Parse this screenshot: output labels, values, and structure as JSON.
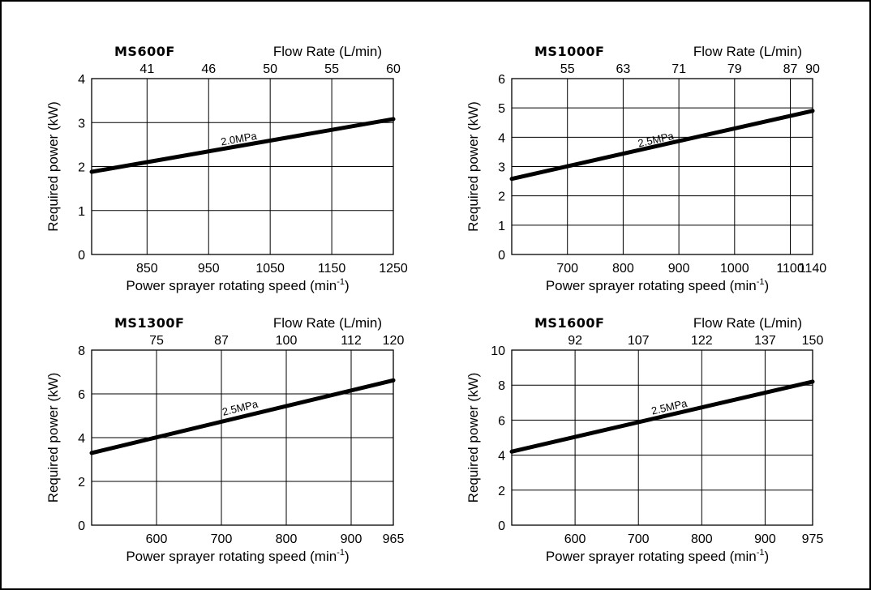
{
  "chart_data": [
    {
      "type": "line",
      "model": "MS600F",
      "top_axis_label": "Flow Rate (L/min)",
      "xlabel": "Power sprayer rotating speed (min",
      "xlabel_sup": "-1",
      "xlabel_close": ")",
      "ylabel": "Required power (kW)",
      "xlim": [
        760,
        1250
      ],
      "ylim": [
        0,
        4
      ],
      "x_ticks": [
        850,
        950,
        1050,
        1150,
        1250
      ],
      "x_tick_labels": [
        "850",
        "950",
        "1050",
        "1150",
        "1250"
      ],
      "y_ticks": [
        0,
        1,
        2,
        3,
        4
      ],
      "y_tick_labels": [
        "0",
        "1",
        "2",
        "3",
        "4"
      ],
      "top_ticks": [
        850,
        950,
        1050,
        1150,
        1250
      ],
      "top_tick_labels": [
        "41",
        "46",
        "50",
        "55",
        "60"
      ],
      "series": [
        {
          "name": "2.0MPa",
          "x": [
            760,
            1250
          ],
          "y": [
            1.88,
            3.08
          ]
        }
      ],
      "annotation": {
        "text": "2.0MPa",
        "x": 1000,
        "y": 2.55
      },
      "grid": true
    },
    {
      "type": "line",
      "model": "MS1000F",
      "top_axis_label": "Flow Rate (L/min)",
      "xlabel": "Power sprayer rotating speed (min",
      "xlabel_sup": "-1",
      "xlabel_close": ")",
      "ylabel": "Required power (kW)",
      "xlim": [
        600,
        1140
      ],
      "ylim": [
        0,
        6
      ],
      "x_ticks": [
        700,
        800,
        900,
        1000,
        1100,
        1140
      ],
      "x_tick_labels": [
        "700",
        "800",
        "900",
        "1000",
        "1100",
        "1140"
      ],
      "y_ticks": [
        0,
        1,
        2,
        3,
        4,
        5,
        6
      ],
      "y_tick_labels": [
        "0",
        "1",
        "2",
        "3",
        "4",
        "5",
        "6"
      ],
      "top_ticks": [
        700,
        800,
        900,
        1000,
        1100,
        1140
      ],
      "top_tick_labels": [
        "55",
        "63",
        "71",
        "79",
        "87",
        "90"
      ],
      "series": [
        {
          "name": "2.5MPa",
          "x": [
            600,
            1140
          ],
          "y": [
            2.58,
            4.9
          ]
        }
      ],
      "annotation": {
        "text": "2.5MPa",
        "x": 860,
        "y": 3.8
      },
      "grid": true
    },
    {
      "type": "line",
      "model": "MS1300F",
      "top_axis_label": "Flow Rate (L/min)",
      "xlabel": "Power sprayer rotating speed (min",
      "xlabel_sup": "-1",
      "xlabel_close": ")",
      "ylabel": "Required power (kW)",
      "xlim": [
        500,
        965
      ],
      "ylim": [
        0,
        8
      ],
      "x_ticks": [
        600,
        700,
        800,
        900,
        965
      ],
      "x_tick_labels": [
        "600",
        "700",
        "800",
        "900",
        "965"
      ],
      "y_ticks": [
        0,
        2,
        4,
        6,
        8
      ],
      "y_tick_labels": [
        "0",
        "2",
        "4",
        "6",
        "8"
      ],
      "top_ticks": [
        600,
        700,
        800,
        900,
        965
      ],
      "top_tick_labels": [
        "75",
        "87",
        "100",
        "112",
        "120"
      ],
      "series": [
        {
          "name": "2.5MPa",
          "x": [
            500,
            965
          ],
          "y": [
            3.3,
            6.62
          ]
        }
      ],
      "annotation": {
        "text": "2.5MPa",
        "x": 730,
        "y": 5.2
      },
      "grid": true
    },
    {
      "type": "line",
      "model": "MS1600F",
      "top_axis_label": "Flow Rate (L/min)",
      "xlabel": "Power sprayer rotating speed (min",
      "xlabel_sup": "-1",
      "xlabel_close": ")",
      "ylabel": "Required power (kW)",
      "xlim": [
        500,
        975
      ],
      "ylim": [
        0,
        10
      ],
      "x_ticks": [
        600,
        700,
        800,
        900,
        975
      ],
      "x_tick_labels": [
        "600",
        "700",
        "800",
        "900",
        "975"
      ],
      "y_ticks": [
        0,
        2,
        4,
        6,
        8,
        10
      ],
      "y_tick_labels": [
        "0",
        "2",
        "4",
        "6",
        "8",
        "10"
      ],
      "top_ticks": [
        600,
        700,
        800,
        900,
        975
      ],
      "top_tick_labels": [
        "92",
        "107",
        "122",
        "137",
        "150"
      ],
      "series": [
        {
          "name": "2.5MPa",
          "x": [
            500,
            975
          ],
          "y": [
            4.2,
            8.2
          ]
        }
      ],
      "annotation": {
        "text": "2.5MPa",
        "x": 750,
        "y": 6.55
      },
      "grid": true
    }
  ]
}
